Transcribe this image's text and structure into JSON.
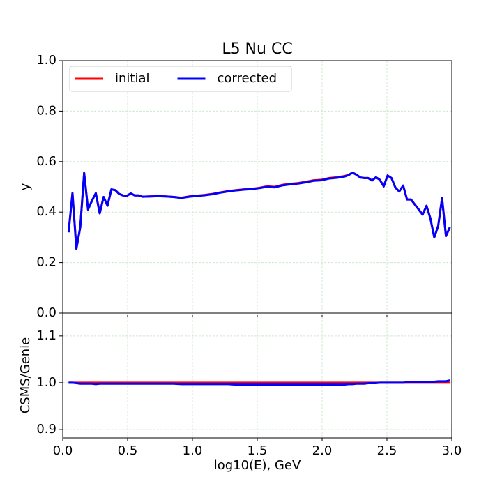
{
  "chart_data": [
    {
      "type": "line",
      "title": "L5 Nu CC",
      "y_label": "y",
      "x": [
        0.045,
        0.075,
        0.105,
        0.135,
        0.165,
        0.195,
        0.225,
        0.255,
        0.285,
        0.315,
        0.345,
        0.375,
        0.405,
        0.435,
        0.465,
        0.495,
        0.525,
        0.555,
        0.585,
        0.615,
        0.675,
        0.735,
        0.795,
        0.855,
        0.915,
        0.975,
        1.035,
        1.095,
        1.155,
        1.215,
        1.275,
        1.335,
        1.395,
        1.455,
        1.515,
        1.575,
        1.635,
        1.695,
        1.755,
        1.815,
        1.875,
        1.935,
        1.995,
        2.055,
        2.115,
        2.175,
        2.205,
        2.235,
        2.265,
        2.295,
        2.325,
        2.355,
        2.385,
        2.415,
        2.445,
        2.475,
        2.505,
        2.535,
        2.565,
        2.595,
        2.625,
        2.655,
        2.685,
        2.715,
        2.745,
        2.775,
        2.805,
        2.835,
        2.865,
        2.895,
        2.925,
        2.955,
        2.985
      ],
      "series": [
        {
          "name": "initial",
          "color": "#ff0000",
          "values": [
            0.32,
            0.475,
            0.255,
            0.34,
            0.555,
            0.41,
            0.445,
            0.475,
            0.395,
            0.46,
            0.425,
            0.49,
            0.487,
            0.472,
            0.466,
            0.465,
            0.474,
            0.466,
            0.466,
            0.461,
            0.462,
            0.463,
            0.462,
            0.46,
            0.457,
            0.462,
            0.465,
            0.468,
            0.472,
            0.478,
            0.483,
            0.487,
            0.49,
            0.492,
            0.496,
            0.502,
            0.5,
            0.508,
            0.512,
            0.515,
            0.52,
            0.526,
            0.528,
            0.535,
            0.538,
            0.543,
            0.548,
            0.557,
            0.548,
            0.537,
            0.535,
            0.535,
            0.525,
            0.538,
            0.528,
            0.502,
            0.545,
            0.535,
            0.497,
            0.482,
            0.505,
            0.45,
            0.45,
            0.43,
            0.41,
            0.39,
            0.425,
            0.375,
            0.3,
            0.345,
            0.455,
            0.305,
            0.34
          ]
        },
        {
          "name": "corrected",
          "color": "#0000ff",
          "values": [
            0.32,
            0.475,
            0.255,
            0.34,
            0.555,
            0.41,
            0.445,
            0.475,
            0.395,
            0.46,
            0.425,
            0.49,
            0.487,
            0.472,
            0.466,
            0.465,
            0.474,
            0.466,
            0.466,
            0.461,
            0.462,
            0.463,
            0.462,
            0.46,
            0.456,
            0.461,
            0.464,
            0.467,
            0.471,
            0.477,
            0.482,
            0.486,
            0.489,
            0.491,
            0.495,
            0.5,
            0.498,
            0.506,
            0.51,
            0.513,
            0.518,
            0.524,
            0.526,
            0.533,
            0.536,
            0.541,
            0.547,
            0.556,
            0.548,
            0.537,
            0.535,
            0.535,
            0.525,
            0.538,
            0.528,
            0.502,
            0.545,
            0.535,
            0.497,
            0.482,
            0.505,
            0.45,
            0.45,
            0.43,
            0.41,
            0.39,
            0.425,
            0.375,
            0.3,
            0.345,
            0.455,
            0.305,
            0.34
          ]
        }
      ],
      "xlim": [
        0,
        3
      ],
      "xticks": [
        0,
        0.5,
        1,
        1.5,
        2,
        2.5,
        3
      ],
      "ylim": [
        0,
        1
      ],
      "yticks": [
        {
          "value": 0,
          "label": "0.0"
        },
        {
          "value": 0.2,
          "label": "0.2"
        },
        {
          "value": 0.4,
          "label": "0.4"
        },
        {
          "value": 0.6,
          "label": "0.6"
        },
        {
          "value": 0.8,
          "label": "0.8"
        },
        {
          "value": 1,
          "label": "1.0"
        }
      ],
      "grid": true,
      "legend": "upper left"
    },
    {
      "type": "line",
      "x_label": "log10(E), GeV",
      "y_label": "CSMS/Genie",
      "x": [
        0.045,
        0.075,
        0.105,
        0.135,
        0.165,
        0.195,
        0.225,
        0.255,
        0.285,
        0.315,
        0.345,
        0.375,
        0.405,
        0.435,
        0.465,
        0.495,
        0.525,
        0.555,
        0.585,
        0.615,
        0.675,
        0.735,
        0.795,
        0.855,
        0.915,
        0.975,
        1.035,
        1.095,
        1.155,
        1.215,
        1.275,
        1.335,
        1.395,
        1.455,
        1.515,
        1.575,
        1.635,
        1.695,
        1.755,
        1.815,
        1.875,
        1.935,
        1.995,
        2.055,
        2.115,
        2.175,
        2.205,
        2.235,
        2.265,
        2.295,
        2.325,
        2.355,
        2.385,
        2.415,
        2.445,
        2.475,
        2.505,
        2.535,
        2.565,
        2.595,
        2.625,
        2.655,
        2.685,
        2.715,
        2.745,
        2.775,
        2.805,
        2.835,
        2.865,
        2.895,
        2.925,
        2.955,
        2.985
      ],
      "series": [
        {
          "name": "initial",
          "color": "#ff0000",
          "values": [
            1,
            1,
            1,
            1,
            1,
            1,
            1,
            1,
            1,
            1,
            1,
            1,
            1,
            1,
            1,
            1,
            1,
            1,
            1,
            1,
            1,
            1,
            1,
            1,
            1,
            1,
            1,
            1,
            1,
            1,
            1,
            1,
            1,
            1,
            1,
            1,
            1,
            1,
            1,
            1,
            1,
            1,
            1,
            1,
            1,
            1,
            1,
            1,
            1,
            1,
            1,
            1,
            1,
            1,
            1,
            1,
            1,
            1,
            1,
            1,
            1,
            1,
            1,
            1,
            1,
            1,
            1,
            1,
            1,
            1,
            1,
            1,
            1
          ]
        },
        {
          "name": "corrected",
          "color": "#0000ff",
          "values": [
            1,
            1,
            0.999,
            0.998,
            0.998,
            0.998,
            0.998,
            0.997,
            0.998,
            0.998,
            0.998,
            0.998,
            0.998,
            0.998,
            0.998,
            0.998,
            0.998,
            0.998,
            0.998,
            0.998,
            0.998,
            0.998,
            0.998,
            0.998,
            0.997,
            0.997,
            0.997,
            0.997,
            0.997,
            0.997,
            0.997,
            0.996,
            0.996,
            0.996,
            0.996,
            0.996,
            0.996,
            0.996,
            0.996,
            0.996,
            0.996,
            0.996,
            0.996,
            0.996,
            0.996,
            0.996,
            0.997,
            0.997,
            0.998,
            0.998,
            0.998,
            0.999,
            0.999,
            0.999,
            1,
            1,
            1,
            1,
            1,
            1,
            1,
            1.001,
            1.001,
            1.001,
            1.001,
            1.002,
            1.002,
            1.002,
            1.002,
            1.003,
            1.003,
            1.003,
            1.005
          ]
        }
      ],
      "xlim": [
        0,
        3
      ],
      "xticks": [
        {
          "value": 0,
          "label": "0.0"
        },
        0.5,
        {
          "value": 1,
          "label": "1.0"
        },
        1.5,
        {
          "value": 2,
          "label": "2.0"
        },
        2.5,
        {
          "value": 3,
          "label": "3.0"
        }
      ],
      "ylim": [
        0.882,
        1.149
      ],
      "yticks": [
        0.9,
        {
          "value": 1,
          "label": "1.0"
        },
        1.1
      ],
      "grid": true
    }
  ]
}
